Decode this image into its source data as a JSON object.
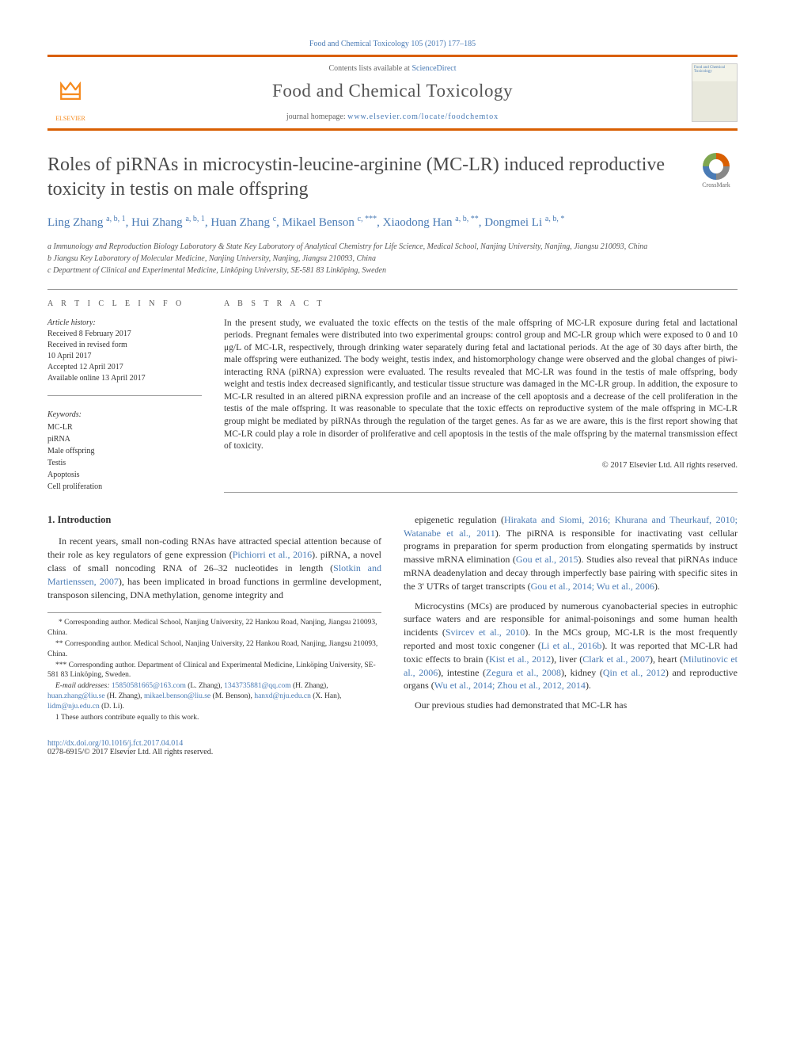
{
  "citation": "Food and Chemical Toxicology 105 (2017) 177–185",
  "header": {
    "contents_prefix": "Contents lists available at ",
    "contents_link": "ScienceDirect",
    "journal_name": "Food and Chemical Toxicology",
    "homepage_prefix": "journal homepage: ",
    "homepage_url": "www.elsevier.com/locate/foodchemtox",
    "publisher_name": "ELSEVIER"
  },
  "crossmark_label": "CrossMark",
  "title": "Roles of piRNAs in microcystin-leucine-arginine (MC-LR) induced reproductive toxicity in testis on male offspring",
  "authors_html": "Ling Zhang <sup>a, b, 1</sup>, Hui Zhang <sup>a, b, 1</sup>, Huan Zhang <sup>c</sup>, Mikael Benson <sup>c, ***</sup>, Xiaodong Han <sup>a, b, **</sup>, Dongmei Li <sup>a, b, *</sup>",
  "affiliations": {
    "a": "a Immunology and Reproduction Biology Laboratory & State Key Laboratory of Analytical Chemistry for Life Science, Medical School, Nanjing University, Nanjing, Jiangsu 210093, China",
    "b": "b Jiangsu Key Laboratory of Molecular Medicine, Nanjing University, Nanjing, Jiangsu 210093, China",
    "c": "c Department of Clinical and Experimental Medicine, Linköping University, SE-581 83 Linköping, Sweden"
  },
  "info": {
    "label": "A R T I C L E   I N F O",
    "history_label": "Article history:",
    "received": "Received 8 February 2017",
    "revised": "Received in revised form\n10 April 2017",
    "accepted": "Accepted 12 April 2017",
    "online": "Available online 13 April 2017",
    "keywords_label": "Keywords:",
    "keywords": [
      "MC-LR",
      "piRNA",
      "Male offspring",
      "Testis",
      "Apoptosis",
      "Cell proliferation"
    ]
  },
  "abstract": {
    "label": "A B S T R A C T",
    "text": "In the present study, we evaluated the toxic effects on the testis of the male offspring of MC-LR exposure during fetal and lactational periods. Pregnant females were distributed into two experimental groups: control group and MC-LR group which were exposed to 0 and 10 μg/L of MC-LR, respectively, through drinking water separately during fetal and lactational periods. At the age of 30 days after birth, the male offspring were euthanized. The body weight, testis index, and histomorphology change were observed and the global changes of piwi-interacting RNA (piRNA) expression were evaluated. The results revealed that MC-LR was found in the testis of male offspring, body weight and testis index decreased significantly, and testicular tissue structure was damaged in the MC-LR group. In addition, the exposure to MC-LR resulted in an altered piRNA expression profile and an increase of the cell apoptosis and a decrease of the cell proliferation in the testis of the male offspring. It was reasonable to speculate that the toxic effects on reproductive system of the male offspring in MC-LR group might be mediated by piRNAs through the regulation of the target genes. As far as we are aware, this is the first report showing that MC-LR could play a role in disorder of proliferative and cell apoptosis in the testis of the male offspring by the maternal transmission effect of toxicity.",
    "copyright": "© 2017 Elsevier Ltd. All rights reserved."
  },
  "body": {
    "section_heading": "1. Introduction",
    "left_p1": "In recent years, small non-coding RNAs have attracted special attention because of their role as key regulators of gene expression (Pichiorri et al., 2016). piRNA, a novel class of small noncoding RNA of 26–32 nucleotides in length (Slotkin and Martienssen, 2007), has been implicated in broad functions in germline development, transposon silencing, DNA methylation, genome integrity and",
    "right_p1": "epigenetic regulation (Hirakata and Siomi, 2016; Khurana and Theurkauf, 2010; Watanabe et al., 2011). The piRNA is responsible for inactivating vast cellular programs in preparation for sperm production from elongating spermatids by instruct massive mRNA elimination (Gou et al., 2015). Studies also reveal that piRNAs induce mRNA deadenylation and decay through imperfectly base pairing with specific sites in the 3' UTRs of target transcripts (Gou et al., 2014; Wu et al., 2006).",
    "right_p2": "Microcystins (MCs) are produced by numerous cyanobacterial species in eutrophic surface waters and are responsible for animal-poisonings and some human health incidents (Svircev et al., 2010). In the MCs group, MC-LR is the most frequently reported and most toxic congener (Li et al., 2016b). It was reported that MC-LR had toxic effects to brain (Kist et al., 2012), liver (Clark et al., 2007), heart (Milutinovic et al., 2006), intestine (Zegura et al., 2008), kidney (Qin et al., 2012) and reproductive organs (Wu et al., 2014; Zhou et al., 2012, 2014).",
    "right_p3": "Our previous studies had demonstrated that MC-LR has"
  },
  "footnotes": {
    "c1": "* Corresponding author. Medical School, Nanjing University, 22 Hankou Road, Nanjing, Jiangsu 210093, China.",
    "c2": "** Corresponding author. Medical School, Nanjing University, 22 Hankou Road, Nanjing, Jiangsu 210093, China.",
    "c3": "*** Corresponding author. Department of Clinical and Experimental Medicine, Linköping University, SE-581 83 Linköping, Sweden.",
    "emails_label": "E-mail addresses:",
    "emails": "15850581665@163.com (L. Zhang), 1343735881@qq.com (H. Zhang), huan.zhang@liu.se (H. Zhang), mikael.benson@liu.se (M. Benson), hanxd@nju.edu.cn (X. Han), lidm@nju.edu.cn (D. Li).",
    "equal": "1 These authors contribute equally to this work."
  },
  "bottom": {
    "doi": "http://dx.doi.org/10.1016/j.fct.2017.04.014",
    "issn": "0278-6915/© 2017 Elsevier Ltd. All rights reserved."
  }
}
